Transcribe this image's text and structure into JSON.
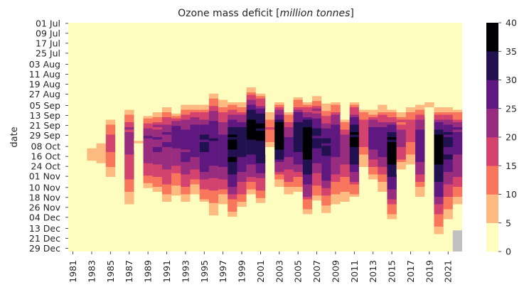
{
  "chart_data": {
    "type": "heatmap",
    "title_prefix": "Ozone mass deficit [",
    "title_italic": "million tonnes",
    "title_suffix": "]",
    "ylabel": "date",
    "years": [
      1981,
      1982,
      1983,
      1984,
      1985,
      1986,
      1987,
      1988,
      1989,
      1990,
      1991,
      1992,
      1993,
      1994,
      1995,
      1996,
      1997,
      1998,
      1999,
      2000,
      2001,
      2002,
      2003,
      2004,
      2005,
      2006,
      2007,
      2008,
      2009,
      2010,
      2011,
      2012,
      2013,
      2014,
      2015,
      2016,
      2017,
      2018,
      2019,
      2020,
      2021,
      2022
    ],
    "x_tick_labels": [
      "1981",
      "1983",
      "1985",
      "1987",
      "1989",
      "1991",
      "1993",
      "1995",
      "1997",
      "1999",
      "2001",
      "2003",
      "2005",
      "2007",
      "2009",
      "2011",
      "2013",
      "2015",
      "2017",
      "2019",
      "2021"
    ],
    "y_tick_labels": [
      "01 Jul",
      "09 Jul",
      "17 Jul",
      "25 Jul",
      "03 Aug",
      "11 Aug",
      "19 Aug",
      "27 Aug",
      "05 Sep",
      "13 Sep",
      "21 Sep",
      "29 Sep",
      "08 Oct",
      "16 Oct",
      "24 Oct",
      "01 Nov",
      "10 Nov",
      "18 Nov",
      "26 Nov",
      "04 Dec",
      "13 Dec",
      "21 Dec",
      "29 Dec"
    ],
    "colorbar": {
      "min": 0,
      "max": 40,
      "ticks": [
        "0",
        "5",
        "10",
        "15",
        "20",
        "25",
        "30",
        "35",
        "40"
      ],
      "colors": [
        "#fcfdbf",
        "#febb81",
        "#f8765c",
        "#d3436e",
        "#982d80",
        "#5f187f",
        "#221150",
        "#000004"
      ]
    },
    "missing_color": "#c0c0c0",
    "season_profiles": [
      {
        "year": 1981,
        "start": "",
        "end": "",
        "peak": 0,
        "peak_date": ""
      },
      {
        "year": 1982,
        "start": "",
        "end": "",
        "peak": 0,
        "peak_date": ""
      },
      {
        "year": 1983,
        "start": "04 Oct",
        "end": "27 Oct",
        "peak": 7,
        "peak_date": "12 Oct"
      },
      {
        "year": 1984,
        "start": "02 Oct",
        "end": "25 Oct",
        "peak": 9,
        "peak_date": "12 Oct"
      },
      {
        "year": 1985,
        "start": "13 Sep",
        "end": "08 Nov",
        "peak": 17,
        "peak_date": "05 Oct"
      },
      {
        "year": 1986,
        "start": "",
        "end": "",
        "peak": 0,
        "peak_date": ""
      },
      {
        "year": 1987,
        "start": "05 Sep",
        "end": "02 Dec",
        "peak": 22,
        "peak_date": "01 Oct"
      },
      {
        "year": 1988,
        "start": "02 Oct",
        "end": "10 Oct",
        "peak": 6,
        "peak_date": "06 Oct"
      },
      {
        "year": 1989,
        "start": "10 Sep",
        "end": "18 Nov",
        "peak": 24,
        "peak_date": "01 Oct"
      },
      {
        "year": 1990,
        "start": "07 Sep",
        "end": "20 Nov",
        "peak": 25,
        "peak_date": "03 Oct"
      },
      {
        "year": 1991,
        "start": "05 Sep",
        "end": "28 Nov",
        "peak": 25,
        "peak_date": "29 Sep"
      },
      {
        "year": 1992,
        "start": "10 Sep",
        "end": "20 Nov",
        "peak": 28,
        "peak_date": "25 Sep"
      },
      {
        "year": 1993,
        "start": "01 Sep",
        "end": "28 Nov",
        "peak": 27,
        "peak_date": "01 Oct"
      },
      {
        "year": 1994,
        "start": "03 Sep",
        "end": "20 Nov",
        "peak": 28,
        "peak_date": "27 Sep"
      },
      {
        "year": 1995,
        "start": "01 Sep",
        "end": "28 Nov",
        "peak": 31,
        "peak_date": "05 Oct"
      },
      {
        "year": 1996,
        "start": "23 Aug",
        "end": "06 Dec",
        "peak": 29,
        "peak_date": "01 Oct"
      },
      {
        "year": 1997,
        "start": "28 Aug",
        "end": "28 Nov",
        "peak": 27,
        "peak_date": "07 Oct"
      },
      {
        "year": 1998,
        "start": "30 Aug",
        "end": "08 Dec",
        "peak": 36,
        "peak_date": "05 Oct"
      },
      {
        "year": 1999,
        "start": "01 Sep",
        "end": "02 Dec",
        "peak": 33,
        "peak_date": "01 Oct"
      },
      {
        "year": 2000,
        "start": "20 Aug",
        "end": "20 Nov",
        "peak": 37,
        "peak_date": "21 Sep"
      },
      {
        "year": 2001,
        "start": "23 Aug",
        "end": "28 Nov",
        "peak": 36,
        "peak_date": "25 Sep"
      },
      {
        "year": 2002,
        "start": "09 Sep",
        "end": "13 Oct",
        "peak": 14,
        "peak_date": "21 Sep"
      },
      {
        "year": 2003,
        "start": "01 Sep",
        "end": "10 Nov",
        "peak": 39,
        "peak_date": "27 Sep"
      },
      {
        "year": 2004,
        "start": "07 Sep",
        "end": "20 Nov",
        "peak": 27,
        "peak_date": "05 Oct"
      },
      {
        "year": 2005,
        "start": "28 Aug",
        "end": "18 Nov",
        "peak": 33,
        "peak_date": "25 Sep"
      },
      {
        "year": 2006,
        "start": "30 Aug",
        "end": "06 Dec",
        "peak": 39,
        "peak_date": "03 Oct"
      },
      {
        "year": 2007,
        "start": "25 Aug",
        "end": "26 Nov",
        "peak": 31,
        "peak_date": "29 Sep"
      },
      {
        "year": 2008,
        "start": "02 Sep",
        "end": "04 Dec",
        "peak": 31,
        "peak_date": "09 Oct"
      },
      {
        "year": 2009,
        "start": "30 Aug",
        "end": "28 Nov",
        "peak": 29,
        "peak_date": "29 Sep"
      },
      {
        "year": 2010,
        "start": "13 Sep",
        "end": "01 Dec",
        "peak": 22,
        "peak_date": "05 Oct"
      },
      {
        "year": 2011,
        "start": "30 Aug",
        "end": "22 Nov",
        "peak": 36,
        "peak_date": "03 Oct"
      },
      {
        "year": 2012,
        "start": "05 Sep",
        "end": "27 Oct",
        "peak": 19,
        "peak_date": "25 Sep"
      },
      {
        "year": 2013,
        "start": "07 Sep",
        "end": "08 Nov",
        "peak": 27,
        "peak_date": "27 Sep"
      },
      {
        "year": 2014,
        "start": "03 Sep",
        "end": "16 Nov",
        "peak": 27,
        "peak_date": "01 Oct"
      },
      {
        "year": 2015,
        "start": "05 Sep",
        "end": "10 Dec",
        "peak": 37,
        "peak_date": "10 Oct"
      },
      {
        "year": 2016,
        "start": "07 Sep",
        "end": "29 Oct",
        "peak": 22,
        "peak_date": "01 Oct"
      },
      {
        "year": 2017,
        "start": "03 Sep",
        "end": "27 Oct",
        "peak": 17,
        "peak_date": "21 Sep"
      },
      {
        "year": 2018,
        "start": "01 Sep",
        "end": "20 Nov",
        "peak": 29,
        "peak_date": "05 Oct"
      },
      {
        "year": 2019,
        "start": "01 Sep",
        "end": "13 Sep",
        "peak": 6,
        "peak_date": "05 Sep"
      },
      {
        "year": 2020,
        "start": "05 Sep",
        "end": "23 Dec",
        "peak": 37,
        "peak_date": "05 Oct"
      },
      {
        "year": 2021,
        "start": "05 Sep",
        "end": "10 Dec",
        "peak": 31,
        "peak_date": "01 Oct"
      },
      {
        "year": 2022,
        "start": "05 Sep",
        "end": "01 Dec",
        "peak": 27,
        "peak_date": "01 Oct"
      }
    ],
    "missing_ranges": [
      {
        "year": 2022,
        "start": "15 Dec",
        "end": "31 Dec"
      }
    ]
  }
}
